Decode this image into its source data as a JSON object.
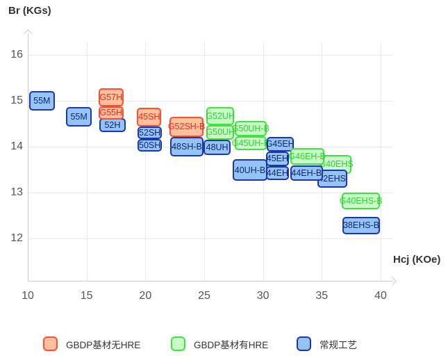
{
  "axis_titles": {
    "y": "Br (KGs)",
    "x": "Hcj (KOe)"
  },
  "legend": [
    {
      "id": "orange",
      "label": "GBDP基材无HRE"
    },
    {
      "id": "green",
      "label": "GBDP基材有HRE"
    },
    {
      "id": "blue",
      "label": "常规工艺"
    }
  ],
  "colors": {
    "orange": {
      "fill": "#ffc19d",
      "border": "#fa5031",
      "text": "#f5251d"
    },
    "green": {
      "fill": "#c9fbc9",
      "border": "#3fe23f",
      "text": "#2ed32e"
    },
    "blue": {
      "fill": "#94c4f4",
      "border": "#1b36b0",
      "text": "#0e2577"
    },
    "grid": "#e9e9e9",
    "axis": "#cccccc",
    "tick_text": "#555555",
    "title_text": "#333333"
  },
  "chart_data": {
    "type": "scatter",
    "title": "",
    "xlabel": "Hcj (KOe)",
    "ylabel": "Br (KGs)",
    "xlim": [
      10,
      41
    ],
    "ylim": [
      11.1,
      16.3
    ],
    "x_ticks": [
      10,
      15,
      20,
      25,
      30,
      35,
      40
    ],
    "y_ticks": [
      16,
      15,
      14,
      13,
      12
    ],
    "grid": true,
    "legend_position": "bottom",
    "series_names": [
      "GBDP基材无HRE",
      "GBDP基材有HRE",
      "常规工艺"
    ],
    "boxes": [
      {
        "label": "55M",
        "series": "blue",
        "hcj": [
          10.1,
          12.3
        ],
        "br": [
          14.79,
          15.21
        ]
      },
      {
        "label": "55M",
        "series": "blue",
        "hcj": [
          13.25,
          15.45
        ],
        "br": [
          14.44,
          14.86
        ]
      },
      {
        "label": "52H",
        "series": "blue",
        "hcj": [
          16.1,
          18.3
        ],
        "br": [
          14.32,
          14.62
        ]
      },
      {
        "label": "G57H",
        "series": "orange",
        "hcj": [
          16.0,
          18.15
        ],
        "br": [
          14.88,
          15.27
        ]
      },
      {
        "label": "G55H",
        "series": "orange",
        "hcj": [
          16.0,
          18.15
        ],
        "br": [
          14.59,
          14.88
        ]
      },
      {
        "label": "50SH",
        "series": "blue",
        "hcj": [
          19.35,
          21.4
        ],
        "br": [
          13.89,
          14.17
        ]
      },
      {
        "label": "52SH",
        "series": "blue",
        "hcj": [
          19.35,
          21.4
        ],
        "br": [
          14.17,
          14.44
        ]
      },
      {
        "label": "45SH",
        "series": "orange",
        "hcj": [
          19.3,
          21.35
        ],
        "br": [
          14.44,
          14.85
        ]
      },
      {
        "label": "48SH-B",
        "series": "blue",
        "hcj": [
          22.1,
          24.95
        ],
        "br": [
          13.79,
          14.21
        ]
      },
      {
        "label": "G52SH-B",
        "series": "orange",
        "hcj": [
          22.05,
          24.95
        ],
        "br": [
          14.21,
          14.65
        ]
      },
      {
        "label": "48UH",
        "series": "blue",
        "hcj": [
          24.95,
          27.25
        ],
        "br": [
          13.82,
          14.15
        ]
      },
      {
        "label": "G50UH",
        "series": "green",
        "hcj": [
          25.2,
          27.55
        ],
        "br": [
          14.15,
          14.47
        ]
      },
      {
        "label": "G52UH",
        "series": "green",
        "hcj": [
          25.2,
          27.55
        ],
        "br": [
          14.47,
          14.86
        ]
      },
      {
        "label": "40UH-B",
        "series": "blue",
        "hcj": [
          27.4,
          30.4
        ],
        "br": [
          13.25,
          13.72
        ]
      },
      {
        "label": "G45UH-B",
        "series": "green",
        "hcj": [
          27.6,
          30.3
        ],
        "br": [
          13.92,
          14.23
        ]
      },
      {
        "label": "G50UH-B",
        "series": "green",
        "hcj": [
          27.6,
          30.3
        ],
        "br": [
          14.23,
          14.56
        ]
      },
      {
        "label": "44EH",
        "series": "blue",
        "hcj": [
          30.25,
          32.2
        ],
        "br": [
          13.27,
          13.58
        ]
      },
      {
        "label": "45EH",
        "series": "blue",
        "hcj": [
          30.25,
          32.2
        ],
        "br": [
          13.58,
          13.9
        ]
      },
      {
        "label": "G45EH",
        "series": "blue",
        "hcj": [
          30.3,
          32.6
        ],
        "br": [
          13.9,
          14.21
        ]
      },
      {
        "label": "G40EHS",
        "series": "green",
        "hcj": [
          34.95,
          37.5
        ],
        "br": [
          13.41,
          13.82
        ]
      },
      {
        "label": "42EHS",
        "series": "blue",
        "hcj": [
          34.6,
          37.15
        ],
        "br": [
          13.11,
          13.5
        ]
      },
      {
        "label": "44EH-B",
        "series": "blue",
        "hcj": [
          32.3,
          35.1
        ],
        "br": [
          13.26,
          13.59
        ]
      },
      {
        "label": "G46EH-B",
        "series": "green",
        "hcj": [
          32.3,
          35.2
        ],
        "br": [
          13.61,
          13.97
        ]
      },
      {
        "label": "G40EHS-B",
        "series": "green",
        "hcj": [
          36.7,
          39.95
        ],
        "br": [
          12.64,
          13.0
        ]
      },
      {
        "label": "38EHS-B",
        "series": "blue",
        "hcj": [
          36.75,
          39.95
        ],
        "br": [
          12.09,
          12.47
        ]
      }
    ]
  }
}
